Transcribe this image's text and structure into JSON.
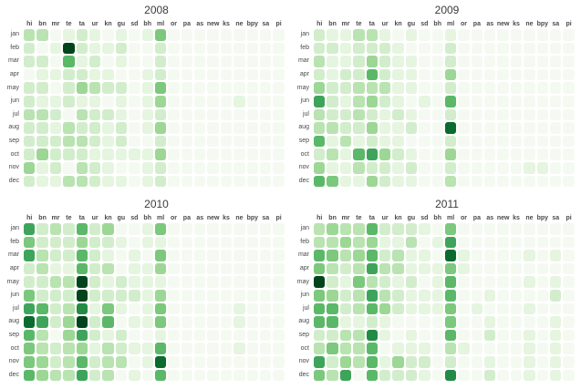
{
  "page": {
    "background": "#ffffff",
    "description": "Four year-by-year heatmaps (small multiples) of monthly activity per language code, green intensity scale"
  },
  "chart_data": {
    "type": "heatmap",
    "layout": "2x2 grid of yearly panels, rows = months, columns = language codes, no legend, no axis titles",
    "columns": [
      "hi",
      "bn",
      "mr",
      "te",
      "ta",
      "ur",
      "kn",
      "gu",
      "sd",
      "bh",
      "ml",
      "or",
      "pa",
      "as",
      "new",
      "ks",
      "ne",
      "bpy",
      "sa",
      "pi"
    ],
    "rows": [
      "jan",
      "feb",
      "mar",
      "apr",
      "may",
      "jun",
      "jul",
      "aug",
      "sep",
      "oct",
      "nov",
      "dec"
    ],
    "color_scale": {
      "name": "greens",
      "note": "discrete levels 0 (lowest) to 10 (highest); cell values index into levels[]",
      "levels": [
        "#f4faf1",
        "#e5f5df",
        "#d2edcb",
        "#b9e3b1",
        "#9dd795",
        "#7cc87d",
        "#5bb868",
        "#3fa45b",
        "#238b45",
        "#0b6b2f",
        "#00441b"
      ]
    },
    "panels": [
      {
        "title": "2008",
        "values": [
          [
            3,
            3,
            0,
            1,
            2,
            1,
            0,
            1,
            0,
            1,
            5,
            0,
            0,
            0,
            0,
            0,
            0,
            0,
            0,
            0
          ],
          [
            2,
            0,
            1,
            10,
            2,
            1,
            1,
            2,
            0,
            0,
            2,
            0,
            0,
            0,
            0,
            0,
            0,
            0,
            0,
            0
          ],
          [
            2,
            2,
            0,
            6,
            1,
            2,
            0,
            1,
            0,
            0,
            2,
            0,
            0,
            0,
            0,
            0,
            0,
            0,
            0,
            0
          ],
          [
            0,
            1,
            1,
            2,
            2,
            1,
            1,
            0,
            0,
            1,
            2,
            0,
            0,
            0,
            0,
            0,
            0,
            0,
            0,
            0
          ],
          [
            2,
            2,
            0,
            2,
            4,
            3,
            2,
            2,
            0,
            1,
            5,
            0,
            0,
            0,
            0,
            0,
            0,
            0,
            0,
            0
          ],
          [
            2,
            1,
            1,
            2,
            1,
            1,
            0,
            1,
            0,
            1,
            4,
            0,
            0,
            0,
            0,
            0,
            1,
            0,
            0,
            0
          ],
          [
            3,
            3,
            2,
            0,
            3,
            2,
            2,
            1,
            0,
            1,
            2,
            0,
            0,
            0,
            0,
            0,
            0,
            0,
            0,
            0
          ],
          [
            2,
            2,
            1,
            3,
            2,
            2,
            1,
            2,
            0,
            1,
            4,
            0,
            0,
            0,
            0,
            0,
            0,
            0,
            0,
            0
          ],
          [
            2,
            2,
            2,
            3,
            3,
            2,
            1,
            2,
            0,
            0,
            2,
            0,
            0,
            0,
            0,
            0,
            0,
            0,
            0,
            0
          ],
          [
            2,
            4,
            2,
            2,
            2,
            1,
            1,
            1,
            1,
            1,
            4,
            0,
            0,
            0,
            0,
            0,
            0,
            0,
            0,
            0
          ],
          [
            4,
            1,
            2,
            0,
            3,
            2,
            1,
            0,
            0,
            1,
            2,
            0,
            0,
            0,
            0,
            0,
            0,
            0,
            0,
            0
          ],
          [
            2,
            1,
            1,
            3,
            3,
            2,
            1,
            1,
            0,
            1,
            2,
            0,
            0,
            0,
            0,
            0,
            0,
            0,
            0,
            0
          ]
        ]
      },
      {
        "title": "2009",
        "values": [
          [
            2,
            1,
            1,
            3,
            3,
            1,
            0,
            1,
            0,
            0,
            1,
            0,
            0,
            0,
            0,
            0,
            0,
            0,
            0,
            0
          ],
          [
            2,
            2,
            1,
            2,
            2,
            2,
            1,
            0,
            0,
            0,
            2,
            0,
            0,
            0,
            0,
            0,
            0,
            0,
            0,
            0
          ],
          [
            3,
            1,
            1,
            2,
            4,
            2,
            1,
            1,
            0,
            0,
            2,
            0,
            0,
            0,
            0,
            0,
            0,
            0,
            0,
            0
          ],
          [
            2,
            1,
            2,
            2,
            6,
            2,
            1,
            1,
            0,
            0,
            4,
            0,
            0,
            0,
            0,
            0,
            0,
            0,
            0,
            0
          ],
          [
            4,
            2,
            2,
            3,
            3,
            3,
            1,
            1,
            0,
            0,
            2,
            0,
            0,
            0,
            0,
            0,
            0,
            0,
            0,
            0
          ],
          [
            7,
            2,
            1,
            3,
            4,
            2,
            1,
            0,
            1,
            0,
            6,
            0,
            0,
            0,
            0,
            0,
            0,
            0,
            0,
            0
          ],
          [
            3,
            2,
            2,
            3,
            2,
            1,
            2,
            1,
            0,
            0,
            2,
            0,
            0,
            0,
            0,
            0,
            0,
            0,
            0,
            0
          ],
          [
            3,
            3,
            2,
            2,
            4,
            1,
            1,
            2,
            0,
            0,
            9,
            0,
            0,
            0,
            0,
            0,
            0,
            0,
            0,
            0
          ],
          [
            6,
            1,
            3,
            1,
            2,
            1,
            1,
            0,
            0,
            0,
            2,
            0,
            0,
            0,
            0,
            0,
            0,
            0,
            0,
            0
          ],
          [
            2,
            3,
            1,
            6,
            7,
            4,
            2,
            1,
            0,
            0,
            4,
            0,
            0,
            0,
            0,
            0,
            0,
            0,
            0,
            0
          ],
          [
            4,
            1,
            1,
            3,
            2,
            2,
            1,
            2,
            0,
            0,
            2,
            0,
            0,
            0,
            0,
            0,
            1,
            1,
            0,
            0
          ],
          [
            6,
            5,
            1,
            1,
            4,
            2,
            1,
            1,
            0,
            0,
            3,
            0,
            0,
            0,
            0,
            0,
            0,
            0,
            0,
            0
          ]
        ]
      },
      {
        "title": "2010",
        "values": [
          [
            7,
            2,
            3,
            2,
            6,
            2,
            4,
            0,
            0,
            1,
            5,
            0,
            0,
            0,
            0,
            0,
            0,
            0,
            0,
            0
          ],
          [
            5,
            2,
            2,
            2,
            4,
            2,
            2,
            1,
            0,
            1,
            1,
            0,
            0,
            0,
            0,
            0,
            0,
            0,
            0,
            0
          ],
          [
            7,
            3,
            2,
            2,
            6,
            2,
            1,
            0,
            1,
            0,
            5,
            0,
            0,
            0,
            0,
            0,
            0,
            0,
            0,
            0
          ],
          [
            2,
            3,
            1,
            1,
            6,
            2,
            3,
            0,
            1,
            1,
            4,
            0,
            0,
            0,
            0,
            0,
            0,
            0,
            0,
            0
          ],
          [
            2,
            2,
            3,
            3,
            10,
            2,
            1,
            2,
            1,
            1,
            1,
            0,
            0,
            0,
            0,
            0,
            0,
            0,
            0,
            0
          ],
          [
            5,
            2,
            2,
            2,
            10,
            2,
            2,
            2,
            2,
            1,
            4,
            0,
            0,
            0,
            0,
            0,
            0,
            0,
            0,
            0
          ],
          [
            7,
            6,
            2,
            3,
            8,
            1,
            5,
            1,
            0,
            1,
            5,
            0,
            0,
            0,
            0,
            0,
            1,
            0,
            0,
            0
          ],
          [
            9,
            7,
            2,
            4,
            10,
            2,
            6,
            0,
            1,
            1,
            5,
            0,
            0,
            0,
            0,
            0,
            1,
            0,
            0,
            0
          ],
          [
            6,
            3,
            0,
            4,
            7,
            2,
            1,
            2,
            0,
            0,
            1,
            0,
            0,
            0,
            0,
            0,
            0,
            0,
            0,
            0
          ],
          [
            5,
            3,
            2,
            3,
            4,
            1,
            3,
            2,
            1,
            1,
            6,
            0,
            0,
            0,
            0,
            0,
            1,
            0,
            0,
            0
          ],
          [
            5,
            4,
            2,
            3,
            6,
            2,
            3,
            3,
            0,
            1,
            9,
            0,
            0,
            0,
            0,
            0,
            0,
            0,
            0,
            0
          ],
          [
            6,
            4,
            3,
            3,
            7,
            2,
            3,
            0,
            1,
            0,
            6,
            0,
            0,
            0,
            0,
            0,
            0,
            0,
            0,
            0
          ]
        ]
      },
      {
        "title": "2011",
        "values": [
          [
            3,
            4,
            3,
            3,
            6,
            2,
            2,
            2,
            1,
            0,
            5,
            0,
            0,
            0,
            0,
            0,
            0,
            0,
            0,
            0
          ],
          [
            3,
            3,
            4,
            3,
            4,
            1,
            1,
            3,
            0,
            1,
            7,
            0,
            0,
            0,
            0,
            0,
            0,
            0,
            0,
            0
          ],
          [
            6,
            5,
            3,
            4,
            6,
            2,
            3,
            1,
            1,
            0,
            9,
            1,
            0,
            0,
            0,
            0,
            1,
            0,
            1,
            0
          ],
          [
            5,
            3,
            2,
            3,
            7,
            3,
            3,
            1,
            1,
            1,
            5,
            1,
            0,
            0,
            0,
            0,
            0,
            0,
            0,
            0
          ],
          [
            10,
            2,
            1,
            5,
            3,
            2,
            1,
            2,
            0,
            1,
            6,
            0,
            0,
            0,
            0,
            0,
            1,
            0,
            1,
            0
          ],
          [
            5,
            4,
            2,
            3,
            7,
            3,
            2,
            1,
            1,
            1,
            6,
            0,
            0,
            1,
            0,
            0,
            0,
            0,
            2,
            0
          ],
          [
            6,
            6,
            2,
            3,
            6,
            4,
            2,
            1,
            1,
            1,
            5,
            0,
            1,
            0,
            0,
            0,
            1,
            0,
            0,
            0
          ],
          [
            6,
            6,
            1,
            1,
            2,
            1,
            0,
            0,
            0,
            0,
            5,
            0,
            0,
            1,
            0,
            0,
            0,
            0,
            1,
            0
          ],
          [
            2,
            2,
            3,
            3,
            8,
            1,
            0,
            1,
            0,
            0,
            6,
            0,
            0,
            2,
            0,
            0,
            1,
            0,
            1,
            0
          ],
          [
            3,
            5,
            3,
            3,
            6,
            0,
            1,
            1,
            1,
            0,
            3,
            1,
            0,
            0,
            0,
            0,
            1,
            0,
            1,
            0
          ],
          [
            7,
            2,
            4,
            3,
            6,
            1,
            4,
            2,
            2,
            0,
            2,
            0,
            0,
            1,
            0,
            0,
            1,
            0,
            1,
            0
          ],
          [
            5,
            3,
            7,
            0,
            6,
            2,
            2,
            2,
            1,
            0,
            8,
            0,
            0,
            2,
            0,
            0,
            1,
            0,
            1,
            0
          ]
        ]
      }
    ]
  }
}
